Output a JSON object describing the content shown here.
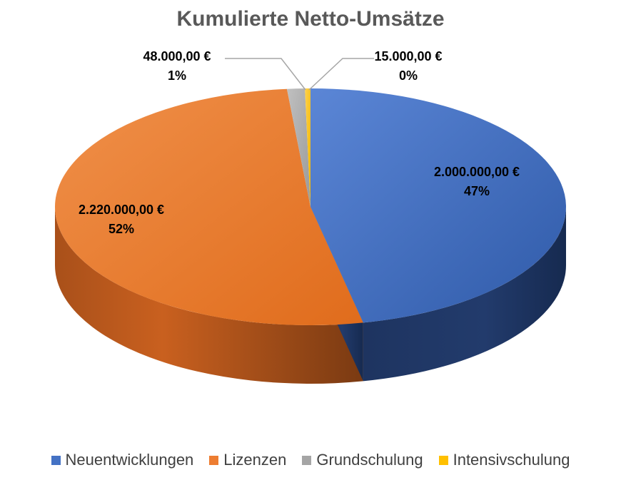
{
  "chart_data": {
    "type": "pie",
    "title": "Kumulierte Netto-Umsätze",
    "style": "3d",
    "series": [
      {
        "name": "Neuentwicklungen",
        "value": 2000000,
        "value_label": "2.000.000,00 €",
        "percent_label": "47%",
        "color": "#4472c4"
      },
      {
        "name": "Lizenzen",
        "value": 2220000,
        "value_label": "2.220.000,00 €",
        "percent_label": "52%",
        "color": "#ed7d31"
      },
      {
        "name": "Grundschulung",
        "value": 48000,
        "value_label": "48.000,00 €",
        "percent_label": "1%",
        "color": "#a5a5a5"
      },
      {
        "name": "Intensivschulung",
        "value": 15000,
        "value_label": "15.000,00 €",
        "percent_label": "0%",
        "color": "#ffc000"
      }
    ],
    "legend_position": "bottom"
  }
}
